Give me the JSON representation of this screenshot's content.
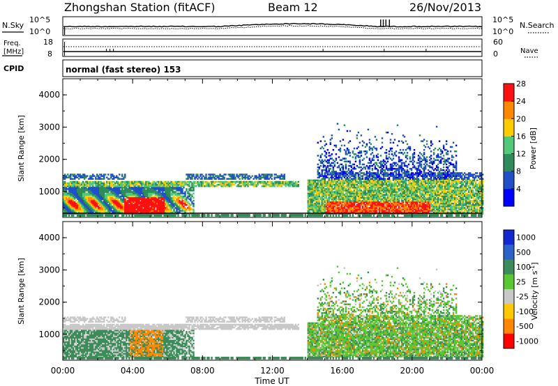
{
  "header": {
    "title": "Zhongshan Station (fitACF)",
    "beam": "Beam 12",
    "date": "26/Nov/2013",
    "cpid_label": "CPID",
    "cpid_value": "normal (fast stereo) 153"
  },
  "top_strips": {
    "nsky_label": "N.Sky",
    "nsearch_label": "N.Search",
    "freq_label_1": "Freq.",
    "freq_label_2": "[MHz]",
    "nave_label": "Nave",
    "noise_ticks_left": [
      "10^5",
      "10^0"
    ],
    "noise_ticks_right": [
      "10^5",
      "10^0"
    ],
    "freq_ticks_left": [
      "18",
      "8"
    ],
    "nave_ticks_right": [
      "60",
      "0"
    ]
  },
  "time_axis": {
    "ticks": [
      "00:00",
      "04:00",
      "08:00",
      "12:00",
      "16:00",
      "20:00",
      "00:00"
    ],
    "label": "Time UT"
  },
  "chart_data": [
    {
      "type": "heatmap",
      "ylabel": "Slant Range [km]",
      "ylim": [
        200,
        4500
      ],
      "yticks": [
        "1000",
        "2000",
        "3000",
        "4000"
      ],
      "xlim_hours": [
        0,
        24
      ],
      "colorbar_label": "Power [dB]",
      "colorbar_ticks": [
        "4",
        "8",
        "12",
        "16",
        "20",
        "24",
        "28"
      ],
      "colorbar_colors": [
        "#0000ff",
        "#1f50c8",
        "#2f8c5a",
        "#52c87a",
        "#ffcc00",
        "#ff8800",
        "#ff1010"
      ]
    },
    {
      "type": "heatmap",
      "ylabel": "Slant Range [km]",
      "ylim": [
        200,
        4500
      ],
      "yticks": [
        "1000",
        "2000",
        "3000",
        "4000"
      ],
      "xlim_hours": [
        0,
        24
      ],
      "colorbar_label": "Velocity [m s",
      "colorbar_label_sup": "-1",
      "colorbar_label_end": "]",
      "colorbar_ticks": [
        "1000",
        "500",
        "100",
        "25",
        "-25",
        "-100",
        "-500",
        "-1000"
      ],
      "colorbar_colors": [
        "#1428d2",
        "#2a64c8",
        "#3c8c5a",
        "#5ac832",
        "#c8c8c8",
        "#ffc800",
        "#ff8800",
        "#ff0000"
      ]
    }
  ]
}
